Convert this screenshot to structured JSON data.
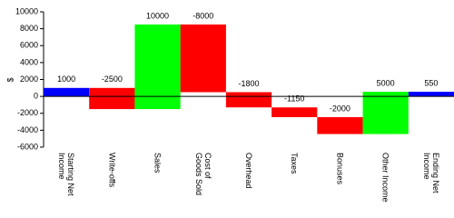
{
  "chart_data": {
    "type": "waterfall",
    "ylabel": "$",
    "categories": [
      "Starting Net Income",
      "Write-offs",
      "Sales",
      "Cost of Goods Sold",
      "Overhead",
      "Taxes",
      "Bonuses",
      "Other Income",
      "Ending Net Income"
    ],
    "values": [
      1000,
      -2500,
      10000,
      -8000,
      -1800,
      -1150,
      -2000,
      5000,
      550
    ],
    "colors": {
      "total": "#0000ff",
      "increase": "#00ff00",
      "decrease": "#ff0000"
    },
    "ylim": [
      -6000,
      10000
    ],
    "yticks": [
      -6000,
      -4000,
      -2000,
      0,
      2000,
      4000,
      6000,
      8000,
      10000
    ]
  }
}
